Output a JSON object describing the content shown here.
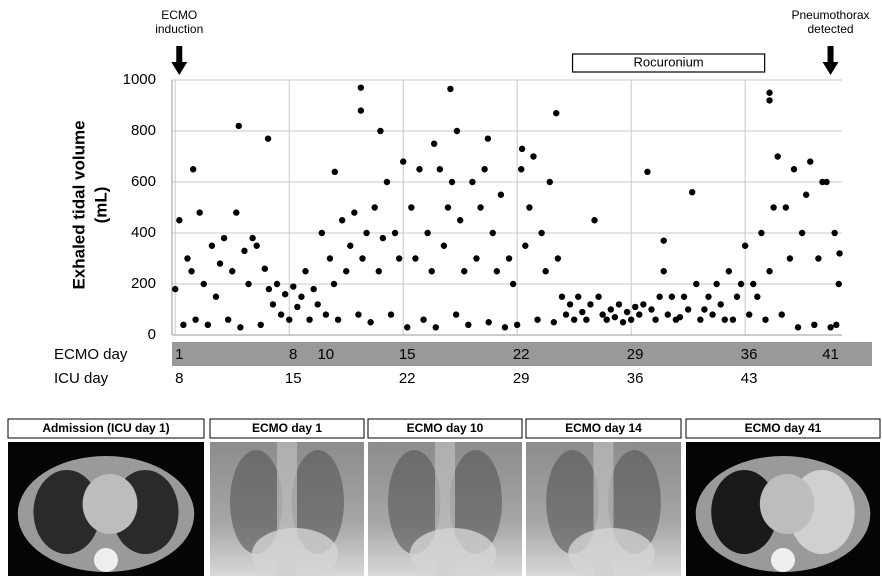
{
  "chart_data": {
    "type": "scatter",
    "ylabel": [
      "Exhaled tidal volume",
      "(mL)"
    ],
    "ylim": [
      0,
      1000
    ],
    "yticks": [
      0,
      200,
      400,
      600,
      800,
      1000
    ],
    "grid": true,
    "xlim": [
      0.8,
      41.95
    ],
    "color": "#000000",
    "x_row_label": "ECMO day",
    "xticks": [
      1,
      8,
      10,
      15,
      22,
      29,
      36,
      41
    ],
    "x2_row_label": "ICU day",
    "x2ticks": [
      {
        "value": 1,
        "label": "8"
      },
      {
        "value": 8,
        "label": "15"
      },
      {
        "value": 15,
        "label": "22"
      },
      {
        "value": 22,
        "label": "29"
      },
      {
        "value": 29,
        "label": "36"
      },
      {
        "value": 36,
        "label": "43"
      }
    ],
    "annotations": [
      {
        "text": [
          "ECMO",
          "induction"
        ],
        "x": 1
      },
      {
        "text": [
          "Pneumothorax",
          "detected"
        ],
        "x": 41
      },
      {
        "text": "Rocuronium",
        "span": [
          25.4,
          37.2
        ]
      }
    ],
    "x": [
      1,
      1.25,
      1.5,
      1.75,
      2,
      2.25,
      2.5,
      2.75,
      3,
      3.25,
      3.5,
      3.75,
      4,
      4.25,
      4.5,
      4.75,
      5,
      5.25,
      5.5,
      5.75,
      6,
      6.25,
      6.5,
      6.75,
      7,
      7.25,
      7.5,
      7.75,
      8,
      8.25,
      8.5,
      8.75,
      9,
      9.25,
      9.5,
      9.75,
      10,
      10.25,
      10.5,
      10.75,
      11,
      11.25,
      11.5,
      11.75,
      12,
      12.25,
      12.5,
      12.75,
      13,
      13.25,
      13.5,
      13.75,
      14,
      14.25,
      14.5,
      14.75,
      15,
      15.25,
      15.5,
      15.75,
      16,
      16.25,
      16.5,
      16.75,
      17,
      17.25,
      17.5,
      17.75,
      18,
      18.25,
      18.5,
      18.75,
      19,
      19.25,
      19.5,
      19.75,
      20,
      20.25,
      20.5,
      20.75,
      21,
      21.25,
      21.5,
      21.75,
      22,
      22.25,
      22.5,
      22.75,
      23,
      23.25,
      23.5,
      23.75,
      24,
      24.25,
      24.5,
      24.75,
      25,
      25.25,
      25.5,
      25.75,
      26,
      26.25,
      26.5,
      26.75,
      27,
      27.25,
      27.5,
      27.75,
      28,
      28.25,
      28.5,
      28.75,
      29,
      29.25,
      29.5,
      29.75,
      30,
      30.25,
      30.5,
      30.75,
      31,
      31.25,
      31.5,
      31.75,
      32,
      32.25,
      32.5,
      32.75,
      33,
      33.25,
      33.5,
      33.75,
      34,
      34.25,
      34.5,
      34.75,
      35,
      35.25,
      35.5,
      35.75,
      36,
      36.25,
      36.5,
      36.75,
      37,
      37.25,
      37.5,
      37.75,
      38,
      38.25,
      38.5,
      38.75,
      39,
      39.25,
      39.5,
      39.75,
      40,
      40.25,
      40.5,
      40.75,
      41,
      41.25,
      41.5,
      41.75,
      41.6,
      41.8,
      2.1,
      4.9,
      6.7,
      10.8,
      12.4,
      12.4,
      13.6,
      17.9,
      18.3,
      20.2,
      24.4,
      37.5,
      37.5,
      31,
      16.9,
      22.3
    ],
    "values": [
      180,
      450,
      40,
      300,
      250,
      60,
      480,
      200,
      40,
      350,
      150,
      280,
      380,
      60,
      250,
      480,
      30,
      330,
      200,
      380,
      350,
      40,
      260,
      180,
      120,
      200,
      80,
      160,
      60,
      190,
      110,
      150,
      250,
      60,
      180,
      120,
      400,
      80,
      300,
      200,
      60,
      450,
      250,
      350,
      480,
      80,
      300,
      400,
      50,
      500,
      250,
      380,
      600,
      80,
      400,
      300,
      680,
      30,
      500,
      300,
      650,
      60,
      400,
      250,
      30,
      650,
      350,
      500,
      600,
      80,
      450,
      250,
      40,
      600,
      300,
      500,
      650,
      50,
      400,
      250,
      550,
      30,
      300,
      200,
      40,
      650,
      350,
      500,
      700,
      60,
      400,
      250,
      600,
      50,
      300,
      150,
      80,
      120,
      60,
      150,
      90,
      60,
      120,
      450,
      150,
      80,
      60,
      100,
      70,
      120,
      50,
      90,
      60,
      110,
      80,
      120,
      640,
      100,
      60,
      150,
      250,
      80,
      150,
      60,
      70,
      150,
      100,
      560,
      200,
      60,
      100,
      150,
      80,
      200,
      120,
      60,
      250,
      60,
      150,
      200,
      350,
      80,
      200,
      150,
      400,
      60,
      250,
      500,
      700,
      80,
      500,
      300,
      650,
      30,
      400,
      550,
      680,
      40,
      300,
      600,
      600,
      30,
      400,
      200,
      40,
      320,
      650,
      820,
      770,
      640,
      970,
      880,
      800,
      965,
      800,
      770,
      870,
      950,
      920,
      370,
      750,
      730
    ]
  },
  "panels": [
    "Admission (ICU day 1)",
    "ECMO day 1",
    "ECMO day 10",
    "ECMO day 14",
    "ECMO day 41"
  ]
}
